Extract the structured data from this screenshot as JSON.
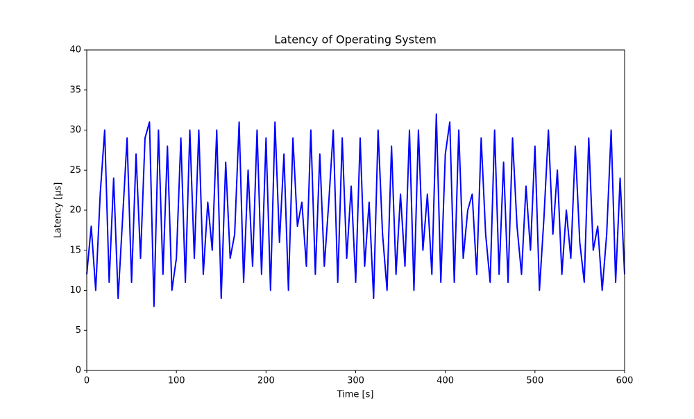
{
  "chart_data": {
    "type": "line",
    "title": "Latency of Operating System",
    "x_label": "Time [s]",
    "y_label": "Latency [µs]",
    "x": [
      0,
      5,
      10,
      15,
      20,
      25,
      30,
      35,
      40,
      45,
      50,
      55,
      60,
      65,
      70,
      75,
      80,
      85,
      90,
      95,
      100,
      105,
      110,
      115,
      120,
      125,
      130,
      135,
      140,
      145,
      150,
      155,
      160,
      165,
      170,
      175,
      180,
      185,
      190,
      195,
      200,
      205,
      210,
      215,
      220,
      225,
      230,
      235,
      240,
      245,
      250,
      255,
      260,
      265,
      270,
      275,
      280,
      285,
      290,
      295,
      300,
      305,
      310,
      315,
      320,
      325,
      330,
      335,
      340,
      345,
      350,
      355,
      360,
      365,
      370,
      375,
      380,
      385,
      390,
      395,
      400,
      405,
      410,
      415,
      420,
      425,
      430,
      435,
      440,
      445,
      450,
      455,
      460,
      465,
      470,
      475,
      480,
      485,
      490,
      495,
      500,
      505,
      510,
      515,
      520,
      525,
      530,
      535,
      540,
      545,
      550,
      555,
      560,
      565,
      570,
      575,
      580,
      585,
      590,
      595,
      600
    ],
    "values": [
      12,
      18,
      10,
      22,
      30,
      11,
      24,
      9,
      19,
      29,
      11,
      27,
      14,
      29,
      31,
      8,
      30,
      12,
      28,
      10,
      14,
      29,
      11,
      30,
      14,
      30,
      12,
      21,
      15,
      30,
      9,
      26,
      14,
      17,
      31,
      11,
      25,
      13,
      30,
      12,
      29,
      10,
      31,
      16,
      27,
      10,
      29,
      18,
      21,
      13,
      30,
      12,
      27,
      13,
      21,
      30,
      11,
      29,
      14,
      23,
      11,
      29,
      13,
      21,
      9,
      30,
      17,
      10,
      28,
      12,
      22,
      13,
      30,
      10,
      30,
      15,
      22,
      12,
      32,
      11,
      27,
      31,
      11,
      30,
      14,
      20,
      22,
      12,
      29,
      17,
      11,
      30,
      12,
      26,
      11,
      29,
      18,
      12,
      23,
      15,
      28,
      10,
      19,
      30,
      17,
      25,
      12,
      20,
      14,
      28,
      16,
      11,
      29,
      15,
      18,
      10,
      17,
      30,
      11,
      24,
      12
    ],
    "color": "#0000ff",
    "xlim": [
      0,
      600
    ],
    "xticks": [
      0,
      100,
      200,
      300,
      400,
      500,
      600
    ],
    "ylim": [
      0,
      40
    ],
    "yticks": [
      0,
      5,
      10,
      15,
      20,
      25,
      30,
      35,
      40
    ]
  }
}
